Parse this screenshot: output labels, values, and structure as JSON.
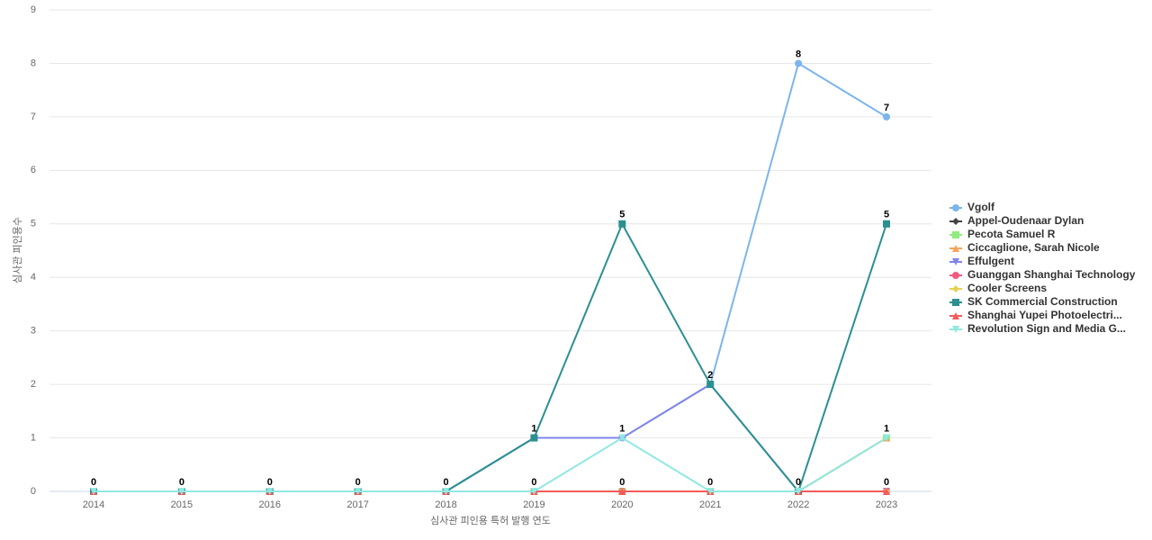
{
  "chart_data": {
    "type": "line",
    "x_label": "심사관 피인용 특허 발행 연도",
    "y_label": "심사관 피인용수",
    "categories": [
      "2014",
      "2015",
      "2016",
      "2017",
      "2018",
      "2019",
      "2020",
      "2021",
      "2022",
      "2023"
    ],
    "ylim": [
      0,
      9
    ],
    "yticks": [
      0,
      1,
      2,
      3,
      4,
      5,
      6,
      7,
      8,
      9
    ],
    "grid": true,
    "legend": "right",
    "series": [
      {
        "name": "Vgolf",
        "color": "#7cb5ec",
        "values": [
          0,
          0,
          0,
          0,
          0,
          1,
          1,
          2,
          8,
          7
        ]
      },
      {
        "name": "Appel-Oudenaar Dylan",
        "color": "#434348",
        "values": [
          0,
          0,
          0,
          0,
          0,
          0,
          0,
          0,
          0,
          0
        ]
      },
      {
        "name": "Pecota Samuel R",
        "color": "#90ed7d",
        "values": [
          0,
          0,
          0,
          0,
          0,
          0,
          0,
          0,
          0,
          1
        ]
      },
      {
        "name": "Ciccaglione, Sarah Nicole",
        "color": "#f7a35c",
        "values": [
          0,
          0,
          0,
          0,
          0,
          0,
          0,
          0,
          0,
          1
        ]
      },
      {
        "name": "Effulgent",
        "color": "#8085e9",
        "values": [
          0,
          0,
          0,
          0,
          0,
          1,
          1,
          2,
          0,
          0
        ]
      },
      {
        "name": "Guanggan Shanghai Technology",
        "color": "#f15c80",
        "values": [
          0,
          0,
          0,
          0,
          0,
          0,
          0,
          0,
          0,
          0
        ]
      },
      {
        "name": "Cooler Screens",
        "color": "#e4d354",
        "values": [
          0,
          0,
          0,
          0,
          0,
          0,
          0,
          0,
          0,
          0
        ]
      },
      {
        "name": "SK Commercial Construction",
        "color": "#2b908f",
        "values": [
          0,
          0,
          0,
          0,
          0,
          1,
          5,
          2,
          0,
          5
        ]
      },
      {
        "name": "Shanghai Yupei Photoelectri...",
        "color": "#f45b5b",
        "values": [
          0,
          0,
          0,
          0,
          0,
          0,
          0,
          0,
          0,
          0
        ]
      },
      {
        "name": "Revolution Sign and Media G...",
        "color": "#91e8e1",
        "values": [
          0,
          0,
          0,
          0,
          0,
          0,
          1,
          0,
          0,
          1
        ]
      }
    ]
  }
}
